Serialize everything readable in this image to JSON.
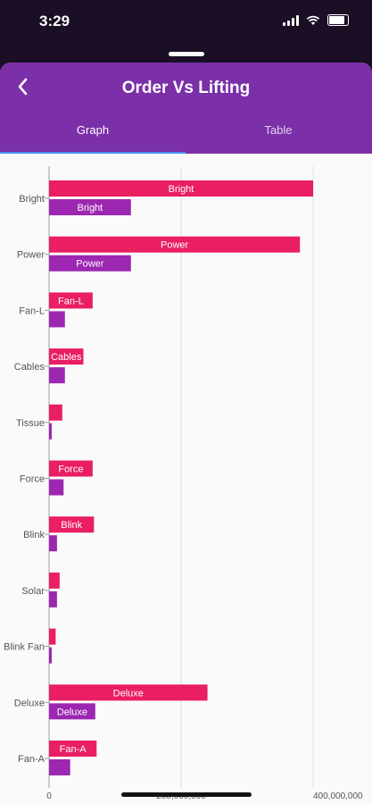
{
  "status_bar": {
    "time": "3:29"
  },
  "header": {
    "title": "Order Vs Lifting",
    "back_icon": "arrow-back-icon"
  },
  "tabs": [
    {
      "label": "Graph",
      "active": true
    },
    {
      "label": "Table",
      "active": false
    }
  ],
  "colors": {
    "appbar": "#7b2fa8",
    "order": "#e91e63",
    "lifting": "#9c27b0",
    "indicator": "#4a8df6"
  },
  "chart_data": {
    "type": "bar",
    "orientation": "horizontal",
    "categories": [
      "Bright",
      "Power",
      "Fan-L",
      "Cables",
      "Tissue",
      "Force",
      "Blink",
      "Solar",
      "Blink Fan",
      "Deluxe",
      "Fan-A"
    ],
    "series": [
      {
        "values": [
          400000000,
          380000000,
          66000000,
          52000000,
          20000000,
          66000000,
          68000000,
          16000000,
          10000000,
          240000000,
          72000000
        ]
      },
      {
        "values": [
          124000000,
          124000000,
          24000000,
          24000000,
          4000000,
          22000000,
          12000000,
          12000000,
          4000000,
          70000000,
          32000000
        ]
      }
    ],
    "bar_labels": [
      "Bright",
      "Power",
      "Fan-L",
      "Cables",
      "Tissue",
      "Force",
      "Blink",
      "Solar",
      "Blink Fan",
      "Deluxe",
      "Fan-A"
    ],
    "x_ticks": [
      "0",
      "200,000,000",
      "400,000,000"
    ],
    "xlim": [
      0,
      400000000
    ],
    "grid": true
  }
}
